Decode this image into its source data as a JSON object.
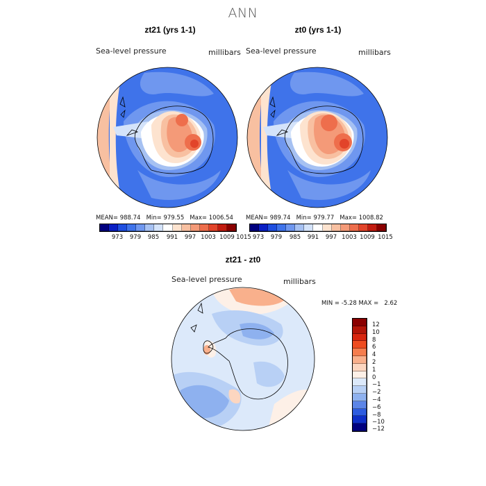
{
  "title": "ANN",
  "chart_data": [
    {
      "type": "heatmap",
      "subtitle": "zt21 (yrs 1-1)",
      "variable": "Sea-level pressure",
      "units": "millibars",
      "stats": {
        "mean_label": "MEAN=",
        "mean": "988.74",
        "min_label": "Min=",
        "min": "979.55",
        "max_label": "Max=",
        "max": "1006.54"
      },
      "colorbar_ticks": [
        "973",
        "979",
        "985",
        "991",
        "997",
        "1003",
        "1009",
        "1015"
      ]
    },
    {
      "type": "heatmap",
      "subtitle": "zt0 (yrs 1-1)",
      "variable": "Sea-level pressure",
      "units": "millibars",
      "stats": {
        "mean_label": "MEAN=",
        "mean": "989.74",
        "min_label": "Min=",
        "min": "979.77",
        "max_label": "Max=",
        "max": "1008.82"
      },
      "colorbar_ticks": [
        "973",
        "979",
        "985",
        "991",
        "997",
        "1003",
        "1009",
        "1015"
      ]
    },
    {
      "type": "heatmap",
      "subtitle": "zt21 - zt0",
      "variable": "Sea-level pressure",
      "units": "millibars",
      "stats": {
        "min_label": "MIN =",
        "min": "-5.28",
        "max_label": "MAX =",
        "max": "2.62"
      },
      "colorbar_levels": [
        "12",
        "10",
        "8",
        "6",
        "4",
        "2",
        "1",
        "0",
        "−1",
        "−2",
        "−4",
        "−6",
        "−8",
        "−10",
        "−12"
      ]
    }
  ],
  "colors": {
    "abs_scale": [
      "#00007f",
      "#0a1fc4",
      "#1f4fe0",
      "#3f73ea",
      "#6f97ef",
      "#a6c1f2",
      "#d4e3fa",
      "#ffffff",
      "#fde3cf",
      "#f8c0a1",
      "#f49a78",
      "#ee6e4c",
      "#e2442a",
      "#c21c10",
      "#8a0000"
    ],
    "diff_scale": [
      "#8a0000",
      "#b31508",
      "#d8260f",
      "#ef4c20",
      "#f57d4e",
      "#f9b08c",
      "#fcd6c0",
      "#fdf0e7",
      "#dce9fa",
      "#b8d0f5",
      "#8eb1ef",
      "#5c85e7",
      "#2d5ce0",
      "#0e2fc8",
      "#00007f"
    ]
  }
}
